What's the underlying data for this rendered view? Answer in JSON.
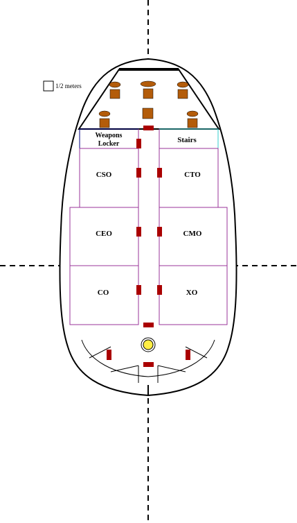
{
  "scale": {
    "label": "1/2 meters"
  },
  "rooms": {
    "weapons_locker_line1": "Weapons",
    "weapons_locker_line2": "Locker",
    "stairs": "Stairs",
    "cso": "CSO",
    "cto": "CTO",
    "ceo": "CEO",
    "cmo": "CMO",
    "co": "CO",
    "xo": "XO"
  },
  "colors": {
    "hull": "#000000",
    "room_border": "#993399",
    "locker_border": "#000080",
    "stairs_border": "#33cccc",
    "door": "#aa0000",
    "chair_seat": "#b35c0a",
    "chair_top": "#b35c0a",
    "console": "#ffee44"
  }
}
